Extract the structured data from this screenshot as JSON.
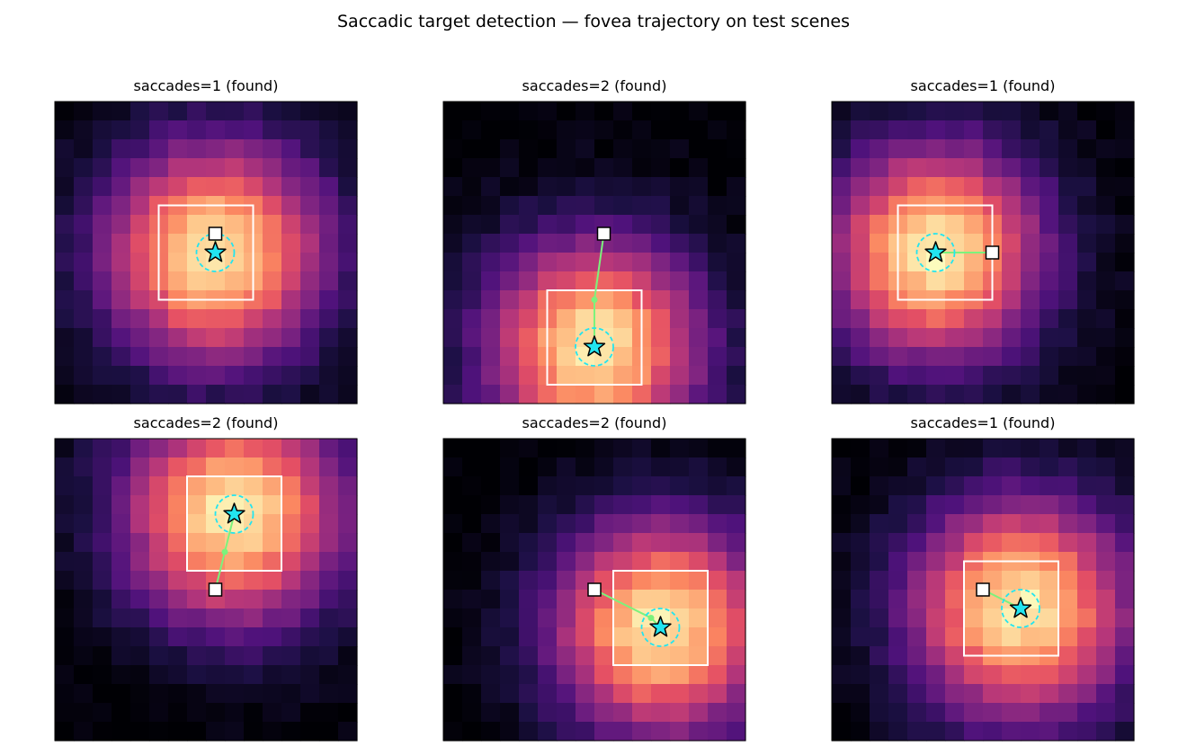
{
  "figure": {
    "title": "Saccadic target detection — fovea trajectory on test scenes"
  },
  "colors": {
    "trajectory": "#7cf27c",
    "target_marker": "#22e5f0",
    "detect_circle": "#22e5f0",
    "box": "#ffffff",
    "start_marker_fill": "#ffffff",
    "colormap": "magma"
  },
  "chart_data": [
    {
      "type": "heatmap",
      "title": "saccades=1 (found)",
      "grid": 16,
      "peak": [
        8.0,
        7.5
      ],
      "sigma": 4.1,
      "noise_seed": 11,
      "start": [
        8.0,
        6.5
      ],
      "saccades": [
        [
          8.0,
          7.5
        ]
      ],
      "target": [
        8.0,
        7.5
      ],
      "box": [
        5.0,
        10.0,
        5.0,
        10.0
      ]
    },
    {
      "type": "heatmap",
      "title": "saccades=2 (found)",
      "grid": 16,
      "peak": [
        7.5,
        12.5
      ],
      "sigma": 4.0,
      "noise_seed": 23,
      "start": [
        8.0,
        6.5
      ],
      "saccades": [
        [
          7.5,
          10.0
        ],
        [
          7.5,
          12.5
        ]
      ],
      "target": [
        7.5,
        12.5
      ],
      "box": [
        5.0,
        10.0,
        9.5,
        14.5
      ]
    },
    {
      "type": "heatmap",
      "title": "saccades=1 (found)",
      "grid": 16,
      "peak": [
        5.0,
        7.5
      ],
      "sigma": 4.0,
      "noise_seed": 37,
      "start": [
        8.0,
        7.5
      ],
      "saccades": [
        [
          5.0,
          7.5
        ]
      ],
      "target": [
        5.0,
        7.5
      ],
      "box": [
        3.0,
        8.0,
        5.0,
        10.0
      ]
    },
    {
      "type": "heatmap",
      "title": "saccades=2 (found)",
      "grid": 16,
      "peak": [
        9.0,
        3.5
      ],
      "sigma": 4.1,
      "noise_seed": 41,
      "start": [
        8.0,
        7.5
      ],
      "saccades": [
        [
          8.5,
          5.5
        ],
        [
          9.0,
          3.5
        ]
      ],
      "target": [
        9.0,
        3.5
      ],
      "box": [
        6.5,
        11.5,
        1.5,
        6.5
      ]
    },
    {
      "type": "heatmap",
      "title": "saccades=2 (found)",
      "grid": 16,
      "peak": [
        11.0,
        9.5
      ],
      "sigma": 4.0,
      "noise_seed": 53,
      "start": [
        7.5,
        7.5
      ],
      "saccades": [
        [
          10.5,
          9.0
        ],
        [
          11.0,
          9.5
        ]
      ],
      "target": [
        11.0,
        9.5
      ],
      "box": [
        8.5,
        13.5,
        6.5,
        11.5
      ]
    },
    {
      "type": "heatmap",
      "title": "saccades=1 (found)",
      "grid": 16,
      "peak": [
        9.5,
        8.5
      ],
      "sigma": 4.1,
      "noise_seed": 67,
      "start": [
        7.5,
        7.5
      ],
      "saccades": [
        [
          9.5,
          8.5
        ]
      ],
      "target": [
        9.5,
        8.5
      ],
      "box": [
        6.5,
        11.5,
        6.0,
        11.0
      ]
    }
  ]
}
